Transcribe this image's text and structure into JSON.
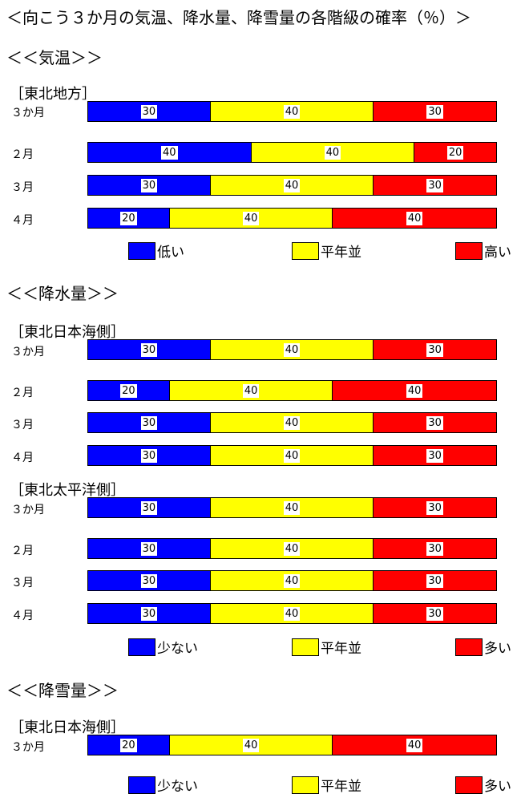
{
  "title": "＜向こう３か月の気温、降水量、降雪量の各階級の確率（％）＞",
  "colors": {
    "low": "#0000ff",
    "normal": "#ffff00",
    "high": "#ff0000"
  },
  "sections": {
    "temp": {
      "heading": "＜＜気温＞＞",
      "legend": [
        "低い",
        "平年並",
        "高い"
      ],
      "regions": [
        {
          "name": "［東北地方］",
          "rows": [
            {
              "label": "３か月",
              "values": [
                30,
                40,
                30
              ]
            },
            {
              "label": "２月",
              "values": [
                40,
                40,
                20
              ]
            },
            {
              "label": "３月",
              "values": [
                30,
                40,
                30
              ]
            },
            {
              "label": "４月",
              "values": [
                20,
                40,
                40
              ]
            }
          ]
        }
      ]
    },
    "precip": {
      "heading": "＜＜降水量＞＞",
      "legend": [
        "少ない",
        "平年並",
        "多い"
      ],
      "regions": [
        {
          "name": "［東北日本海側］",
          "rows": [
            {
              "label": "３か月",
              "values": [
                30,
                40,
                30
              ]
            },
            {
              "label": "２月",
              "values": [
                20,
                40,
                40
              ]
            },
            {
              "label": "３月",
              "values": [
                30,
                40,
                30
              ]
            },
            {
              "label": "４月",
              "values": [
                30,
                40,
                30
              ]
            }
          ]
        },
        {
          "name": "［東北太平洋側］",
          "rows": [
            {
              "label": "３か月",
              "values": [
                30,
                40,
                30
              ]
            },
            {
              "label": "２月",
              "values": [
                30,
                40,
                30
              ]
            },
            {
              "label": "３月",
              "values": [
                30,
                40,
                30
              ]
            },
            {
              "label": "４月",
              "values": [
                30,
                40,
                30
              ]
            }
          ]
        }
      ]
    },
    "snow": {
      "heading": "＜＜降雪量＞＞",
      "legend": [
        "少ない",
        "平年並",
        "多い"
      ],
      "regions": [
        {
          "name": "［東北日本海側］",
          "rows": [
            {
              "label": "３か月",
              "values": [
                20,
                40,
                40
              ]
            }
          ]
        }
      ]
    }
  },
  "chart_data": {
    "type": "bar",
    "stacked": true,
    "orientation": "horizontal",
    "unit": "%",
    "groups": [
      {
        "section": "＜＜気温＞＞",
        "region": "［東北地方］",
        "categories": [
          "３か月",
          "２月",
          "３月",
          "４月"
        ],
        "series": [
          {
            "name": "低い",
            "values": [
              30,
              40,
              30,
              20
            ]
          },
          {
            "name": "平年並",
            "values": [
              40,
              40,
              40,
              40
            ]
          },
          {
            "name": "高い",
            "values": [
              30,
              20,
              30,
              40
            ]
          }
        ]
      },
      {
        "section": "＜＜降水量＞＞",
        "region": "［東北日本海側］",
        "categories": [
          "３か月",
          "２月",
          "３月",
          "４月"
        ],
        "series": [
          {
            "name": "少ない",
            "values": [
              30,
              20,
              30,
              30
            ]
          },
          {
            "name": "平年並",
            "values": [
              40,
              40,
              40,
              40
            ]
          },
          {
            "name": "多い",
            "values": [
              30,
              40,
              30,
              30
            ]
          }
        ]
      },
      {
        "section": "＜＜降水量＞＞",
        "region": "［東北太平洋側］",
        "categories": [
          "３か月",
          "２月",
          "３月",
          "４月"
        ],
        "series": [
          {
            "name": "少ない",
            "values": [
              30,
              30,
              30,
              30
            ]
          },
          {
            "name": "平年並",
            "values": [
              40,
              40,
              40,
              40
            ]
          },
          {
            "name": "多い",
            "values": [
              30,
              30,
              30,
              30
            ]
          }
        ]
      },
      {
        "section": "＜＜降雪量＞＞",
        "region": "［東北日本海側］",
        "categories": [
          "３か月"
        ],
        "series": [
          {
            "name": "少ない",
            "values": [
              20
            ]
          },
          {
            "name": "平年並",
            "values": [
              40
            ]
          },
          {
            "name": "多い",
            "values": [
              40
            ]
          }
        ]
      }
    ]
  }
}
